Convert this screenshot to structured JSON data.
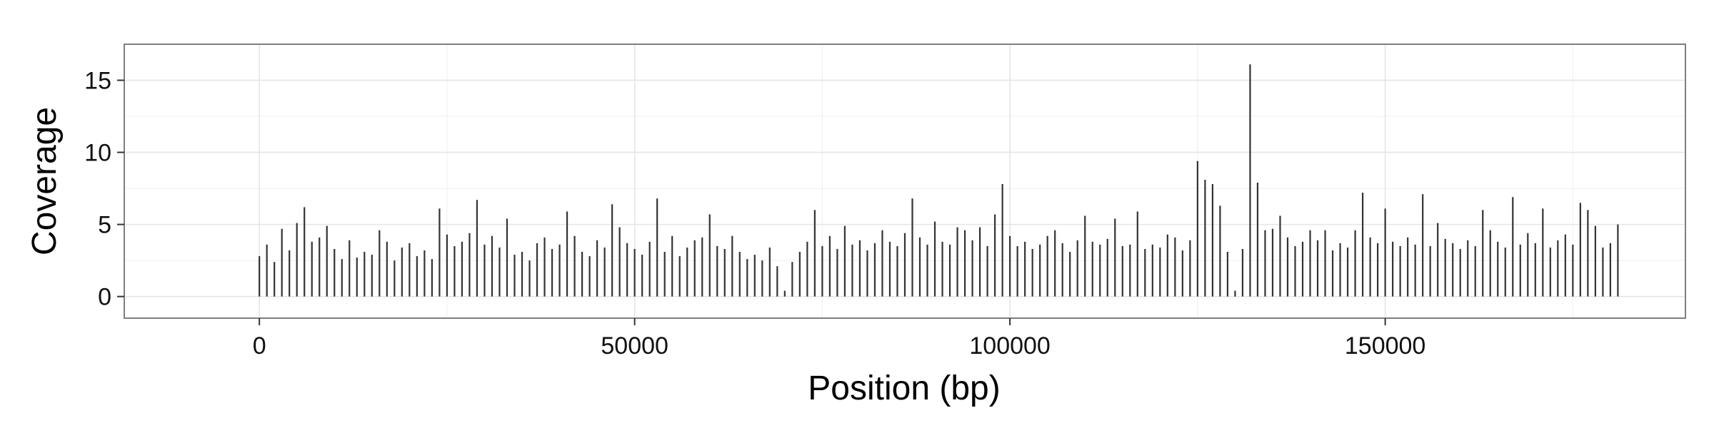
{
  "chart_data": {
    "type": "bar",
    "title": "",
    "xlabel": "Position (bp)",
    "ylabel": "Coverage",
    "xlim": [
      -18000,
      190000
    ],
    "ylim": [
      -1.5,
      17.5
    ],
    "xticks": [
      0,
      50000,
      100000,
      150000
    ],
    "xtick_labels": [
      "0",
      "50000",
      "100000",
      "150000"
    ],
    "yticks": [
      0,
      5,
      10,
      15
    ],
    "ytick_labels": [
      "0",
      "5",
      "10",
      "15"
    ],
    "grid": true,
    "legend": "none",
    "bar_color": "#333333",
    "series": [
      {
        "x": [
          0,
          1000,
          2000,
          3000,
          4000,
          5000,
          6000,
          7000,
          8000,
          9000,
          10000,
          11000,
          12000,
          13000,
          14000,
          15000,
          16000,
          17000,
          18000,
          19000,
          20000,
          21000,
          22000,
          23000,
          24000,
          25000,
          26000,
          27000,
          28000,
          29000,
          30000,
          31000,
          32000,
          33000,
          34000,
          35000,
          36000,
          37000,
          38000,
          39000,
          40000,
          41000,
          42000,
          43000,
          44000,
          45000,
          46000,
          47000,
          48000,
          49000,
          50000,
          51000,
          52000,
          53000,
          54000,
          55000,
          56000,
          57000,
          58000,
          59000,
          60000,
          61000,
          62000,
          63000,
          64000,
          65000,
          66000,
          67000,
          68000,
          69000,
          70000,
          71000,
          72000,
          73000,
          74000,
          75000,
          76000,
          77000,
          78000,
          79000,
          80000,
          81000,
          82000,
          83000,
          84000,
          85000,
          86000,
          87000,
          88000,
          89000,
          90000,
          91000,
          92000,
          93000,
          94000,
          95000,
          96000,
          97000,
          98000,
          99000,
          100000,
          101000,
          102000,
          103000,
          104000,
          105000,
          106000,
          107000,
          108000,
          109000,
          110000,
          111000,
          112000,
          113000,
          114000,
          115000,
          116000,
          117000,
          118000,
          119000,
          120000,
          121000,
          122000,
          123000,
          124000,
          125000,
          126000,
          127000,
          128000,
          129000,
          130000,
          131000,
          132000,
          133000,
          134000,
          135000,
          136000,
          137000,
          138000,
          139000,
          140000,
          141000,
          142000,
          143000,
          144000,
          145000,
          146000,
          147000,
          148000,
          149000,
          150000,
          151000,
          152000,
          153000,
          154000,
          155000,
          156000,
          157000,
          158000,
          159000,
          160000,
          161000,
          162000,
          163000,
          164000,
          165000,
          166000,
          167000,
          168000,
          169000,
          170000,
          171000,
          172000,
          173000,
          174000,
          175000,
          176000,
          177000,
          178000,
          179000,
          180000,
          181000
        ],
        "values": [
          2.8,
          3.6,
          2.4,
          4.7,
          3.2,
          5.1,
          6.2,
          3.8,
          4.1,
          4.9,
          3.3,
          2.6,
          3.9,
          2.7,
          3.1,
          2.9,
          4.6,
          3.8,
          2.5,
          3.4,
          3.7,
          2.8,
          3.2,
          2.6,
          6.1,
          4.3,
          3.5,
          3.8,
          4.4,
          6.7,
          3.6,
          4.2,
          3.4,
          5.4,
          2.9,
          3.1,
          2.5,
          3.7,
          4.1,
          3.3,
          3.6,
          5.9,
          4.2,
          3.1,
          2.8,
          3.9,
          3.4,
          6.4,
          4.8,
          3.7,
          3.3,
          2.9,
          3.8,
          6.8,
          3.1,
          4.2,
          2.8,
          3.4,
          3.9,
          4.1,
          5.7,
          3.5,
          3.3,
          4.2,
          3.1,
          2.6,
          2.9,
          2.5,
          3.4,
          2.1,
          0.4,
          2.4,
          3.1,
          3.8,
          6.0,
          3.5,
          4.2,
          3.3,
          4.9,
          3.6,
          3.9,
          3.2,
          3.7,
          4.6,
          3.8,
          3.5,
          4.4,
          6.8,
          4.1,
          3.6,
          5.2,
          3.8,
          3.6,
          4.8,
          4.6,
          3.9,
          4.8,
          3.5,
          5.7,
          7.8,
          4.2,
          3.5,
          3.8,
          3.3,
          3.6,
          4.2,
          4.6,
          3.7,
          3.1,
          3.9,
          5.6,
          3.8,
          3.6,
          4.0,
          5.4,
          3.5,
          3.6,
          5.9,
          3.3,
          3.6,
          3.4,
          4.3,
          4.1,
          3.2,
          3.9,
          9.4,
          8.1,
          7.8,
          6.3,
          3.1,
          0.4,
          3.3,
          16.1,
          7.9,
          4.6,
          4.7,
          5.6,
          4.1,
          3.5,
          3.8,
          4.6,
          3.9,
          4.6,
          3.2,
          3.7,
          3.4,
          4.6,
          7.2,
          4.1,
          3.7,
          6.1,
          3.8,
          3.5,
          4.1,
          3.6,
          7.1,
          3.5,
          5.1,
          4.0,
          3.7,
          3.3,
          3.9,
          3.5,
          6.0,
          4.6,
          3.8,
          3.4,
          6.9,
          3.6,
          4.4,
          3.7,
          6.1,
          3.4,
          3.9,
          4.3,
          3.6,
          6.5,
          6.0,
          4.9,
          3.4,
          3.7,
          5.0
        ]
      }
    ]
  }
}
